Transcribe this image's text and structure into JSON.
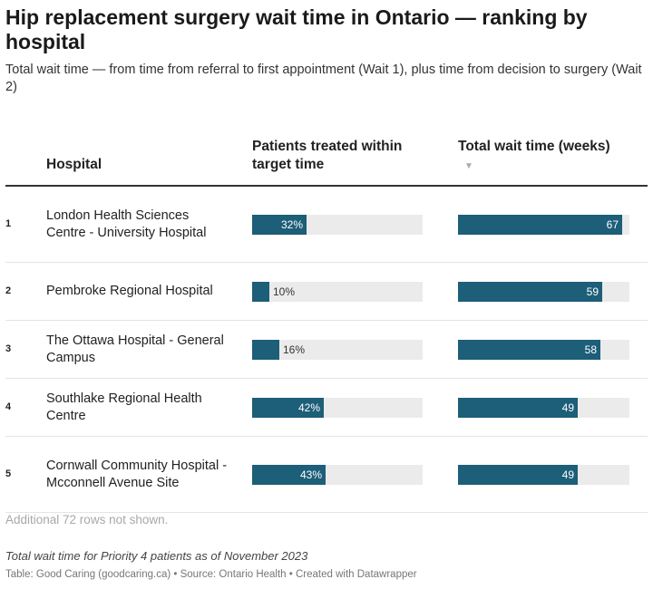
{
  "title": "Hip replacement surgery wait time in Ontario — ranking by hospital",
  "subtitle": "Total wait time — from time from referral to first appointment (Wait 1), plus time from decision to surgery (Wait 2)",
  "columns": {
    "hospital": "Hospital",
    "pct_within_target": "Patients treated within target time",
    "total_wait": "Total wait time (weeks)",
    "sort_indicator": "▼"
  },
  "footer": {
    "rows_hidden": "Additional 72 rows not shown.",
    "note": "Total wait time for Priority 4 patients as of November 2023",
    "source": "Table: Good Caring (goodcaring.ca) • Source: Ontario Health • Created with Datawrapper"
  },
  "colors": {
    "bar": "#1d5e78",
    "track": "#ebebeb"
  },
  "chart_data": {
    "type": "table",
    "sort": "total_wait_weeks descending",
    "pct_scale_max": 100,
    "weeks_scale_max": 70,
    "rows": [
      {
        "rank": "1",
        "hospital": "London Health Sciences Centre - University Hospital",
        "pct_within_target": 32,
        "pct_label": "32%",
        "total_wait_weeks": 67,
        "wait_label": "67"
      },
      {
        "rank": "2",
        "hospital": "Pembroke Regional Hospital",
        "pct_within_target": 10,
        "pct_label": "10%",
        "total_wait_weeks": 59,
        "wait_label": "59"
      },
      {
        "rank": "3",
        "hospital": "The Ottawa Hospital - General Campus",
        "pct_within_target": 16,
        "pct_label": "16%",
        "total_wait_weeks": 58,
        "wait_label": "58"
      },
      {
        "rank": "4",
        "hospital": "Southlake Regional Health Centre",
        "pct_within_target": 42,
        "pct_label": "42%",
        "total_wait_weeks": 49,
        "wait_label": "49"
      },
      {
        "rank": "5",
        "hospital": "Cornwall Community Hospital - Mcconnell Avenue Site",
        "pct_within_target": 43,
        "pct_label": "43%",
        "total_wait_weeks": 49,
        "wait_label": "49"
      }
    ]
  }
}
